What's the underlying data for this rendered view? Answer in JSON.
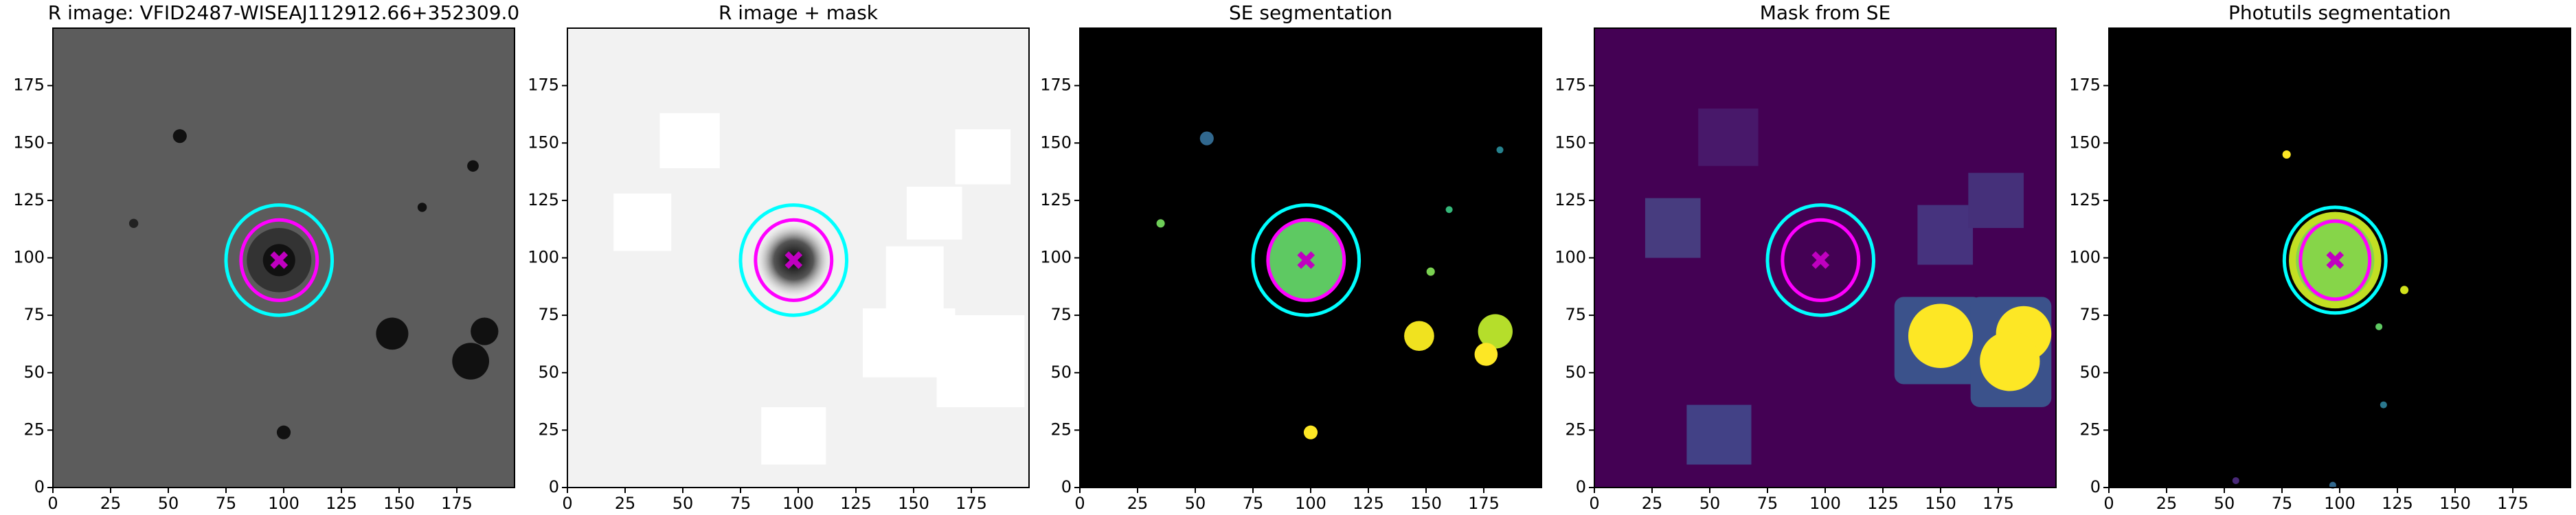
{
  "chart_data": [
    {
      "type": "image",
      "title": "R image: VFID2487-WISEAJ112912.66+352309.0",
      "background": "#5c5c5c",
      "xlim": [
        0,
        200
      ],
      "ylim": [
        0,
        200
      ],
      "xticks": [
        0,
        25,
        50,
        75,
        100,
        125,
        150,
        175
      ],
      "yticks": [
        0,
        25,
        50,
        75,
        100,
        125,
        150,
        175
      ],
      "ellipses": [
        {
          "x": 98,
          "y": 99,
          "rx": 23,
          "ry": 24,
          "color": "#00ffff"
        },
        {
          "x": 98,
          "y": 99,
          "rx": 16.5,
          "ry": 17.5,
          "color": "#ff00ff"
        }
      ],
      "marker": {
        "x": 98,
        "y": 99,
        "color": "#c000c0"
      }
    },
    {
      "type": "image",
      "title": "R image + mask",
      "background": "#f2f2f2",
      "xlim": [
        0,
        200
      ],
      "ylim": [
        0,
        200
      ],
      "xticks": [
        0,
        25,
        50,
        75,
        100,
        125,
        150,
        175
      ],
      "yticks": [
        0,
        25,
        50,
        75,
        100,
        125,
        150,
        175
      ],
      "ellipses": [
        {
          "x": 98,
          "y": 99,
          "rx": 23,
          "ry": 24,
          "color": "#00ffff"
        },
        {
          "x": 98,
          "y": 99,
          "rx": 16.5,
          "ry": 17.5,
          "color": "#ff00ff"
        }
      ],
      "marker": {
        "x": 98,
        "y": 99,
        "color": "#c000c0"
      }
    },
    {
      "type": "image",
      "title": "SE segmentation",
      "background": "#000000",
      "xlim": [
        0,
        200
      ],
      "ylim": [
        0,
        200
      ],
      "xticks": [
        0,
        25,
        50,
        75,
        100,
        125,
        150,
        175
      ],
      "yticks": [
        0,
        25,
        50,
        75,
        100,
        125,
        150,
        175
      ],
      "ellipses": [
        {
          "x": 98,
          "y": 99,
          "rx": 23,
          "ry": 24,
          "color": "#00ffff"
        },
        {
          "x": 98,
          "y": 99,
          "rx": 16.5,
          "ry": 17.5,
          "color": "#ff00ff"
        }
      ],
      "marker": {
        "x": 98,
        "y": 99,
        "color": "#c000c0"
      }
    },
    {
      "type": "image",
      "title": "Mask from SE",
      "background": "#440154",
      "xlim": [
        0,
        200
      ],
      "ylim": [
        0,
        200
      ],
      "xticks": [
        0,
        25,
        50,
        75,
        100,
        125,
        150,
        175
      ],
      "yticks": [
        0,
        25,
        50,
        75,
        100,
        125,
        150,
        175
      ],
      "ellipses": [
        {
          "x": 98,
          "y": 99,
          "rx": 23,
          "ry": 24,
          "color": "#00ffff"
        },
        {
          "x": 98,
          "y": 99,
          "rx": 16.5,
          "ry": 17.5,
          "color": "#ff00ff"
        }
      ],
      "marker": {
        "x": 98,
        "y": 99,
        "color": "#c000c0"
      }
    },
    {
      "type": "image",
      "title": "Photutils segmentation",
      "background": "#000000",
      "xlim": [
        0,
        200
      ],
      "ylim": [
        0,
        200
      ],
      "xticks": [
        0,
        25,
        50,
        75,
        100,
        125,
        150,
        175
      ],
      "yticks": [
        0,
        25,
        50,
        75,
        100,
        125,
        150,
        175
      ],
      "ellipses": [
        {
          "x": 98,
          "y": 99,
          "rx": 22,
          "ry": 23,
          "color": "#00ffff"
        },
        {
          "x": 98,
          "y": 99,
          "rx": 15,
          "ry": 17,
          "color": "#ff00ff"
        }
      ],
      "marker": {
        "x": 98,
        "y": 99,
        "color": "#c000c0"
      }
    }
  ]
}
